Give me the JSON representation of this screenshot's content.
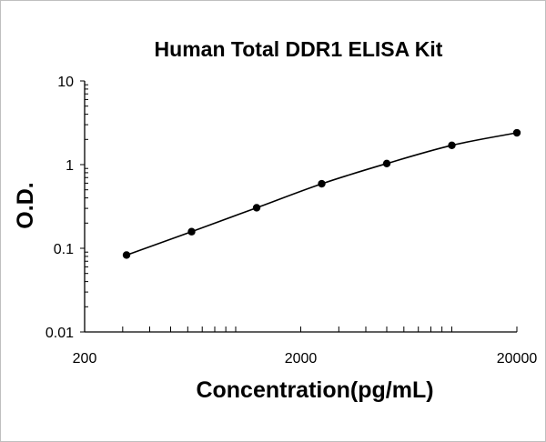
{
  "chart_data": {
    "type": "scatter",
    "title": "Human Total DDR1 ELISA Kit",
    "xlabel": "Concentration(pg/mL)",
    "ylabel": "O.D.",
    "x_scale": "log",
    "y_scale": "log",
    "xlim": [
      200,
      20000
    ],
    "ylim": [
      0.01,
      10
    ],
    "x_ticks": [
      {
        "value": 200,
        "label": "200"
      },
      {
        "value": 2000,
        "label": "2000"
      },
      {
        "value": 20000,
        "label": "20000"
      }
    ],
    "y_ticks": [
      {
        "value": 0.01,
        "label": "0.01"
      },
      {
        "value": 0.1,
        "label": "0.1"
      },
      {
        "value": 1,
        "label": "1"
      },
      {
        "value": 10,
        "label": "10"
      }
    ],
    "grid": false,
    "legend": "none",
    "series": [
      {
        "x": [
          312.5,
          625,
          1250,
          2500,
          5000,
          10000,
          20000
        ],
        "y": [
          0.083,
          0.158,
          0.305,
          0.59,
          1.03,
          1.7,
          2.4
        ]
      }
    ],
    "colors": {
      "marker": "#000000",
      "line": "#000000",
      "axis": "#000000"
    }
  }
}
